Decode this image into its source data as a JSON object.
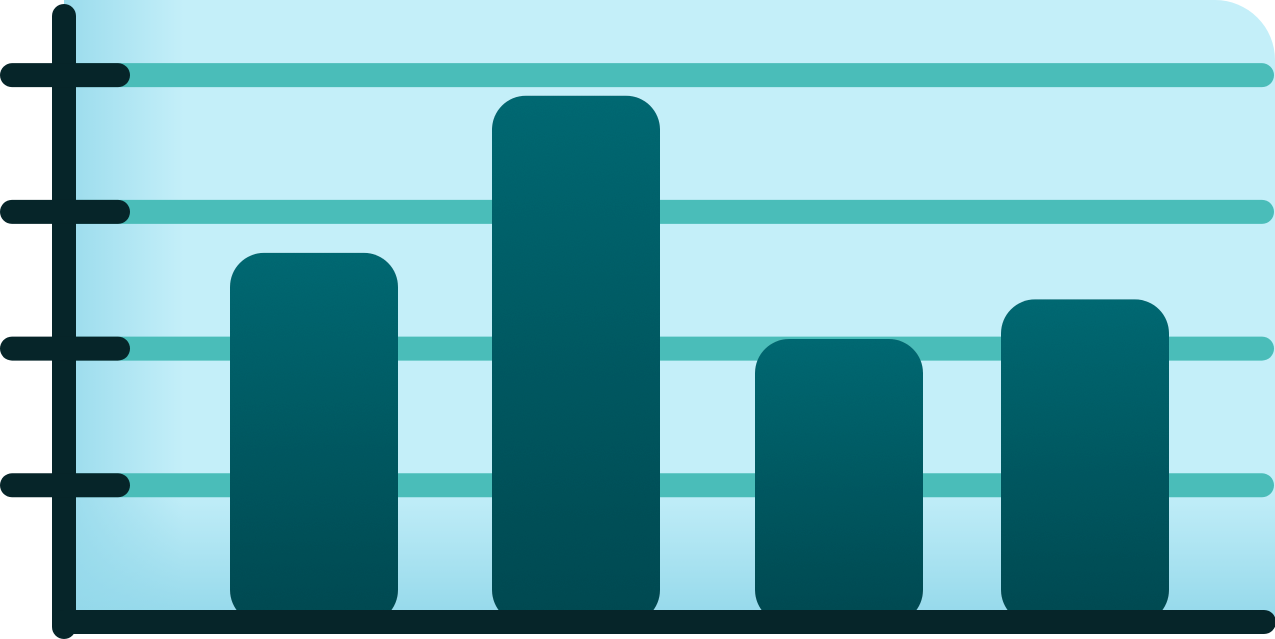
{
  "chart_data": {
    "type": "bar",
    "title": "",
    "xlabel": "",
    "ylabel": "",
    "categories": [
      "",
      "",
      "",
      ""
    ],
    "values": [
      2.7,
      3.85,
      2.07,
      2.36
    ],
    "ylim": [
      0,
      4.55
    ],
    "y_ticks": [
      1,
      2,
      3,
      4
    ],
    "grid": true,
    "legend": "none",
    "colors": {
      "background": "#c4eff9",
      "background_shade": "#93d8ea",
      "gridline": "#4abdb9",
      "bar_top": "#036a74",
      "bar_bottom": "#024a52",
      "axis": "#062529"
    }
  }
}
